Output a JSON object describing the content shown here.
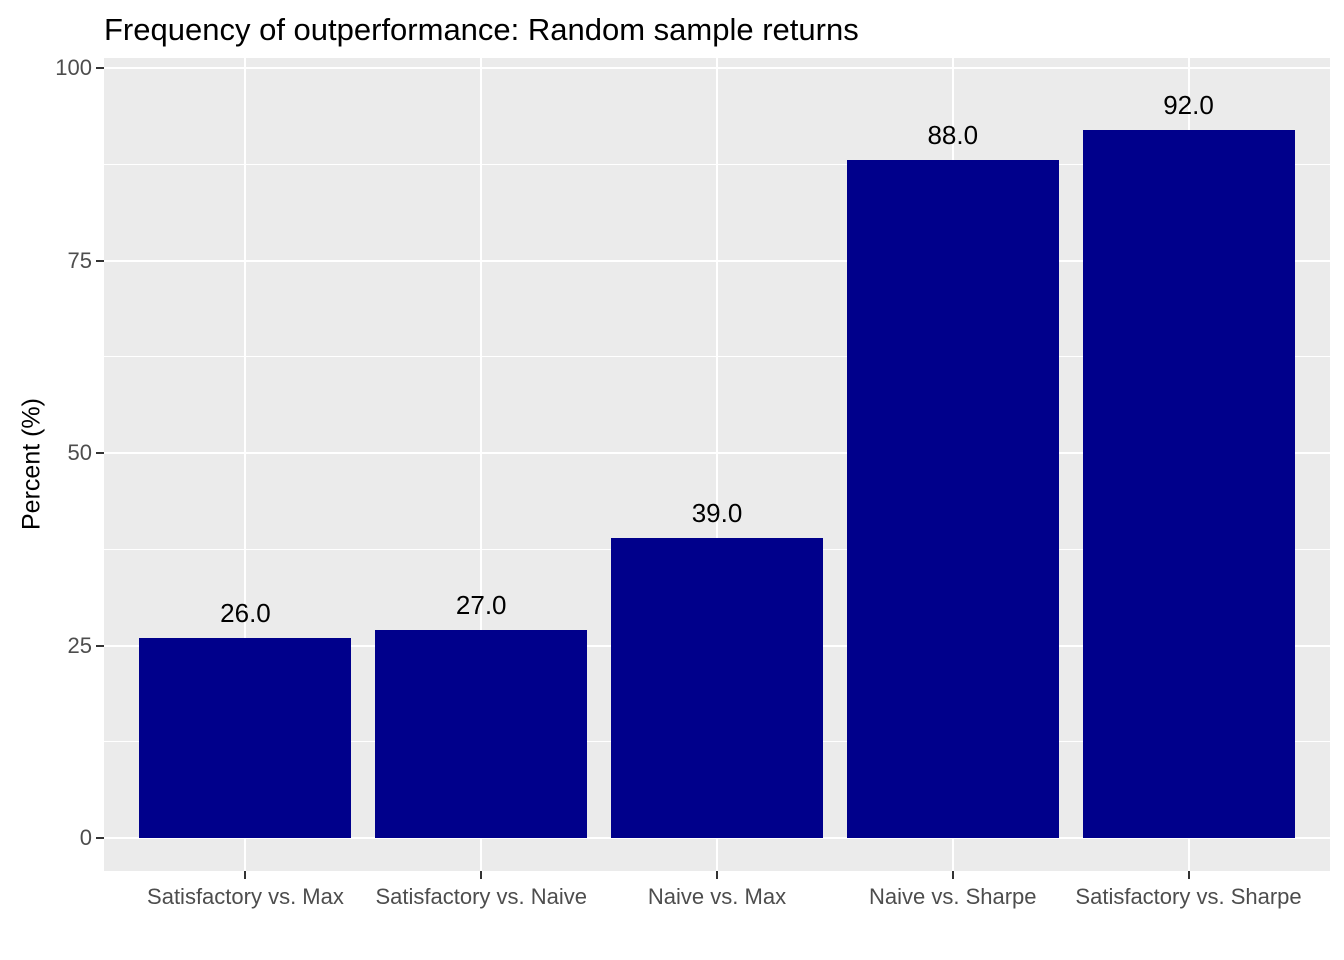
{
  "title": "Frequency of outperformance: Random sample returns",
  "chart_data": {
    "type": "bar",
    "title": "Frequency of outperformance: Random sample returns",
    "categories": [
      "Satisfactory vs. Max",
      "Satisfactory vs. Naive",
      "Naive vs. Max",
      "Naive vs. Sharpe",
      "Satisfactory vs. Sharpe"
    ],
    "values": [
      26.0,
      27.0,
      39.0,
      88.0,
      92.0
    ],
    "bar_value_labels": [
      "26.0",
      "27.0",
      "39.0",
      "88.0",
      "92.0"
    ],
    "xlabel": "",
    "ylabel": "Percent (%)",
    "ylim": [
      0,
      100
    ],
    "yticks": [
      0,
      25,
      50,
      75,
      100
    ],
    "ytick_labels": [
      "0",
      "25",
      "50",
      "75",
      "100"
    ],
    "yminor": [
      12.5,
      37.5,
      62.5,
      87.5
    ],
    "grid": true,
    "legend": "none",
    "colors": {
      "bar": "#00008B",
      "panel_background": "#EBEBEB",
      "gridline": "#FFFFFF",
      "tick_label": "#4d4d4d",
      "tick_mark": "#333333",
      "title_text": "#000000"
    }
  }
}
